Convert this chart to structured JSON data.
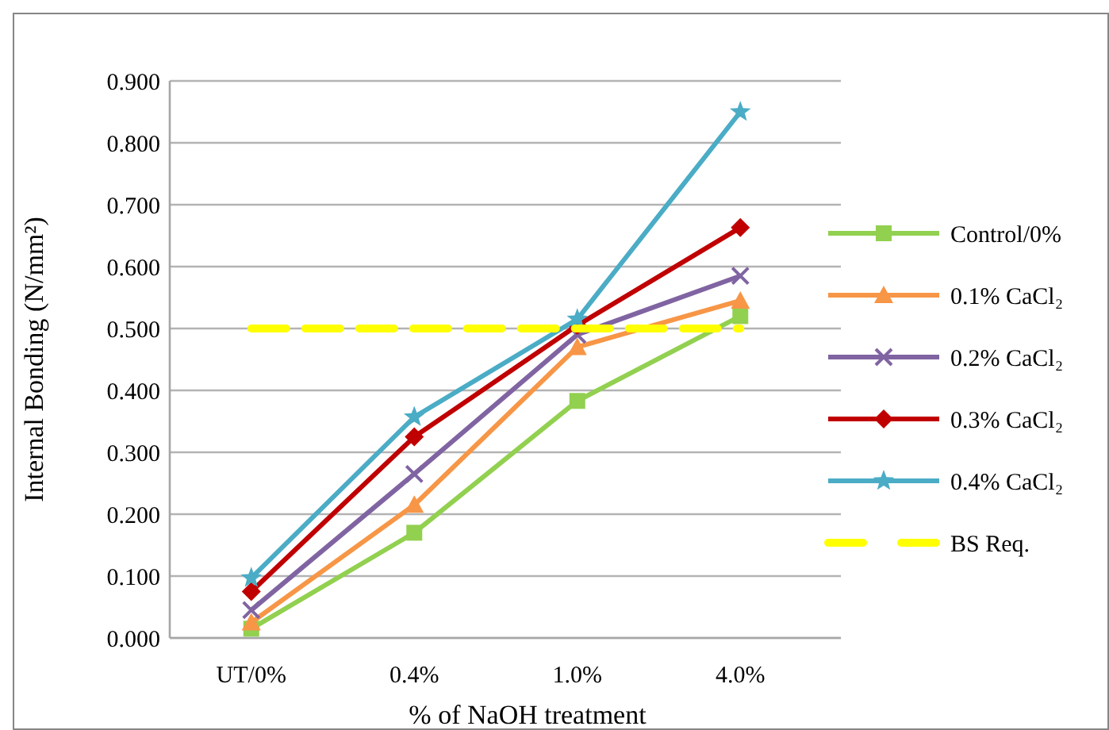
{
  "chart_data": {
    "type": "line",
    "xlabel": "% of NaOH treatment",
    "ylabel": "Internal Bonding (N/mm²)",
    "categories": [
      "UT/0%",
      "0.4%",
      "1.0%",
      "4.0%"
    ],
    "series": [
      {
        "name": "Control/0%",
        "color": "#92d050",
        "marker": "square",
        "values": [
          0.015,
          0.17,
          0.383,
          0.52
        ]
      },
      {
        "name": "0.1% CaCl₂",
        "color": "#f79646",
        "marker": "triangle",
        "values": [
          0.025,
          0.215,
          0.47,
          0.545
        ]
      },
      {
        "name": "0.2% CaCl₂",
        "color": "#8064a2",
        "marker": "cross",
        "values": [
          0.045,
          0.265,
          0.49,
          0.585
        ]
      },
      {
        "name": "0.3% CaCl₂",
        "color": "#c00000",
        "marker": "diamond",
        "values": [
          0.075,
          0.325,
          0.505,
          0.663
        ]
      },
      {
        "name": "0.4% CaCl₂",
        "color": "#4bacc6",
        "marker": "star",
        "values": [
          0.097,
          0.357,
          0.515,
          0.85
        ]
      },
      {
        "name": "BS Req.",
        "color": "#ffff00",
        "marker": "none",
        "line_style": "dashed",
        "values": [
          0.5,
          0.5,
          0.5,
          0.5
        ]
      }
    ],
    "ylim": [
      0,
      0.9
    ],
    "yticks": [
      {
        "value": 0,
        "label": "0.000"
      },
      {
        "value": 0.1,
        "label": "0.100"
      },
      {
        "value": 0.2,
        "label": "0.200"
      },
      {
        "value": 0.3,
        "label": "0.300"
      },
      {
        "value": 0.4,
        "label": "0.400"
      },
      {
        "value": 0.5,
        "label": "0.500"
      },
      {
        "value": 0.6,
        "label": "0.600"
      },
      {
        "value": 0.7,
        "label": "0.700"
      },
      {
        "value": 0.8,
        "label": "0.800"
      },
      {
        "value": 0.9,
        "label": "0.900"
      }
    ],
    "grid": "y",
    "legend": "right"
  }
}
